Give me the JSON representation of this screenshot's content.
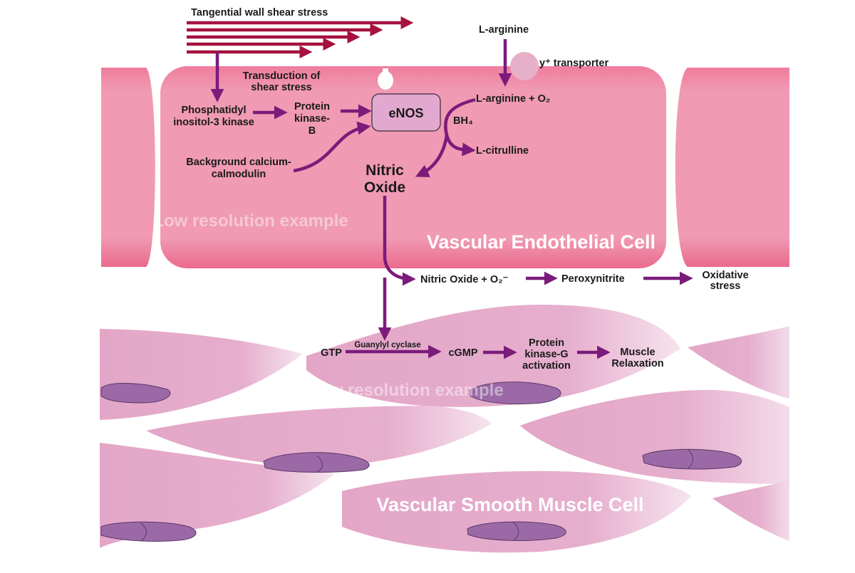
{
  "colors": {
    "endothelial_fill": "#ef9ab4",
    "endothelial_edge": "#e7577f",
    "muscle_fill": "#e3a8c8",
    "muscle_light": "#f7e6ef",
    "nucleus": "#9b6aa6",
    "nucleus_edge": "#5a3668",
    "pathway_arrow": "#7b1b7a",
    "shear_arrow": "#a5123f",
    "enos_fill": "#e2a8cf",
    "transporter": "#e6b0c8"
  },
  "labels": {
    "shear_stress": "Tangential wall shear stress",
    "transduction_line1": "Transduction of",
    "transduction_line2": "shear stress",
    "pi3k_line1": "Phosphatidyl",
    "pi3k_line2": "inositol-3 kinase",
    "pkb_line1": "Protein",
    "pkb_line2": "kinase-",
    "pkb_line3": "B",
    "calcium_line1": "Background calcium-",
    "calcium_line2": "calmodulin",
    "enos": "eNOS",
    "l_arginine": "L-arginine",
    "transporter": "y⁺ transporter",
    "l_arginine_o2": "L-arginine + O₂",
    "bh4": "BH₄",
    "l_citrulline": "L-citrulline",
    "nitric_line1": "Nitric",
    "nitric_line2": "Oxide",
    "endothelial_cell": "Vascular Endothelial Cell",
    "watermark": "Low resolution example",
    "no_plus_o2": "Nitric Oxide + O₂⁻",
    "peroxynitrite": "Peroxynitrite",
    "oxidative_line1": "Oxidative",
    "oxidative_line2": "stress",
    "gtp": "GTP",
    "guanylyl_cyclase": "Guanylyl cyclase",
    "cgmp": "cGMP",
    "pkg_line1": "Protein",
    "pkg_line2": "kinase-G",
    "pkg_line3": "activation",
    "muscle_line1": "Muscle",
    "muscle_line2": "Relaxation",
    "smooth_muscle_cell": "Vascular Smooth Muscle Cell"
  }
}
